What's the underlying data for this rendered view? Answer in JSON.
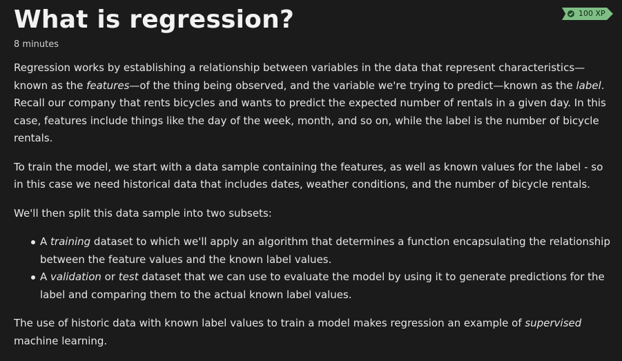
{
  "header": {
    "title": "What is regression?",
    "duration": "8 minutes"
  },
  "badge": {
    "label": "100 XP",
    "icon": "check-icon"
  },
  "content": {
    "p1": {
      "a": "Regression works by establishing a relationship between variables in the data that represent characteristics—known as the ",
      "b": "features",
      "c": "—of the thing being observed, and the variable we're trying to predict—known as the ",
      "d": "label",
      "e": ". Recall our company that rents bicycles and wants to predict the expected number of rentals in a given day. In this case, features include things like the day of the week, month, and so on, while the label is the number of bicycle rentals."
    },
    "p2": "To train the model, we start with a data sample containing the features, as well as known values for the label - so in this case we need historical data that includes dates, weather conditions, and the number of bicycle rentals.",
    "p3": "We'll then split this data sample into two subsets:",
    "list": [
      {
        "a": "A ",
        "b": "training",
        "c": " dataset to which we'll apply an algorithm that determines a function encapsulating the relationship between the feature values and the known label values."
      },
      {
        "a": "A ",
        "b": "validation",
        "c": " or ",
        "d": "test",
        "e": " dataset that we can use to evaluate the model by using it to generate predictions for the label and comparing them to the actual known label values."
      }
    ],
    "p4": {
      "a": "The use of historic data with known label values to train a model makes regression an example of ",
      "b": "supervised",
      "c": " machine learning."
    }
  }
}
